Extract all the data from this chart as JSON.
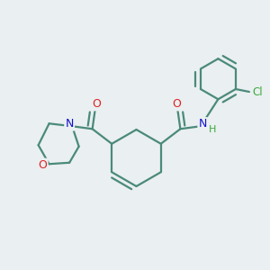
{
  "background_color": "#eaeff1",
  "bond_color": "#4a8a7a",
  "atom_colors": {
    "O": "#dd2222",
    "N": "#1111cc",
    "Cl": "#3aaa3a",
    "H": "#3aaa3a",
    "C": "#4a8a7a"
  }
}
